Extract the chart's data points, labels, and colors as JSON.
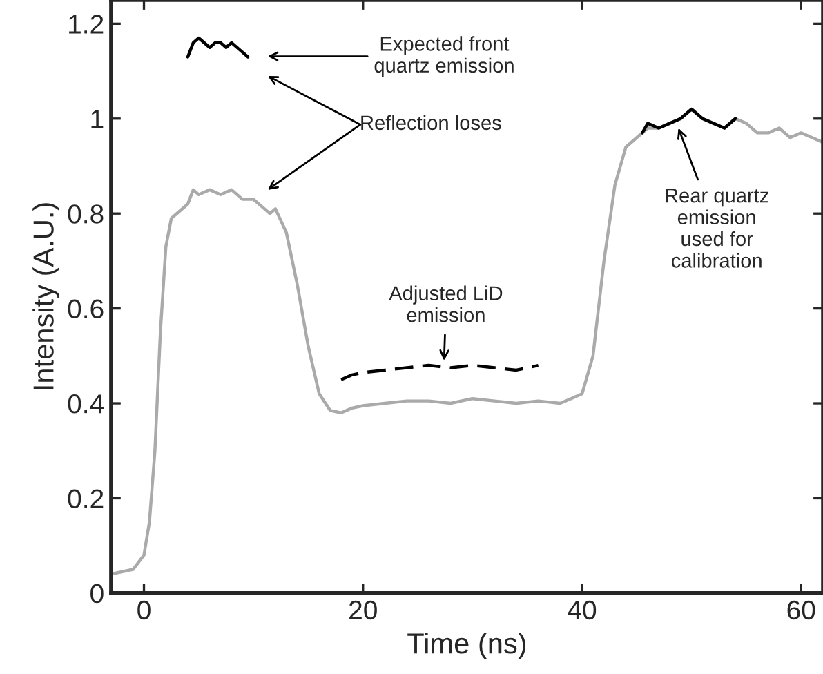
{
  "chart_data": {
    "type": "line",
    "xlabel": "Time (ns)",
    "ylabel": "Intensity (A.U.)",
    "xlim": [
      -3,
      62
    ],
    "ylim": [
      0,
      1.25
    ],
    "xticks": [
      0,
      20,
      40,
      60
    ],
    "yticks": [
      0,
      0.2,
      0.4,
      0.6,
      0.8,
      1,
      1.2
    ],
    "grid": false,
    "legend": false,
    "marker": "none",
    "series": [
      {
        "color": "#aaaaaa",
        "line_style": "solid",
        "x": [
          -3,
          -1,
          0,
          0.5,
          1,
          1.5,
          2,
          2.5,
          3,
          4,
          4.5,
          5,
          6,
          7,
          8,
          9,
          10,
          11,
          11.5,
          12,
          13,
          14,
          15,
          16,
          17,
          18,
          19,
          20,
          22,
          24,
          26,
          28,
          30,
          32,
          34,
          36,
          38,
          39,
          40,
          41,
          42,
          43,
          44,
          45,
          46,
          47,
          48,
          49,
          50,
          51,
          52,
          53,
          54,
          55,
          56,
          57,
          58,
          59,
          60,
          61,
          62
        ],
        "values": [
          0.04,
          0.05,
          0.08,
          0.15,
          0.3,
          0.55,
          0.73,
          0.79,
          0.8,
          0.82,
          0.85,
          0.84,
          0.85,
          0.84,
          0.85,
          0.83,
          0.83,
          0.81,
          0.8,
          0.81,
          0.76,
          0.65,
          0.52,
          0.42,
          0.385,
          0.38,
          0.39,
          0.395,
          0.4,
          0.405,
          0.405,
          0.4,
          0.41,
          0.405,
          0.4,
          0.405,
          0.4,
          0.41,
          0.42,
          0.5,
          0.7,
          0.86,
          0.94,
          0.96,
          0.98,
          0.98,
          0.99,
          1,
          1.02,
          1,
          0.99,
          0.98,
          1,
          0.99,
          0.97,
          0.97,
          0.98,
          0.96,
          0.97,
          0.96,
          0.95
        ]
      },
      {
        "color": "#000000",
        "line_style": "solid",
        "x": [
          4,
          4.5,
          5,
          6,
          6.5,
          7,
          7.5,
          8,
          9,
          9.5
        ],
        "values": [
          1.13,
          1.16,
          1.17,
          1.15,
          1.16,
          1.16,
          1.15,
          1.16,
          1.14,
          1.13
        ]
      },
      {
        "color": "#000000",
        "line_style": "dashed",
        "x": [
          18,
          19,
          20,
          22,
          24,
          26,
          28,
          30,
          32,
          34,
          36
        ],
        "values": [
          0.45,
          0.46,
          0.465,
          0.47,
          0.475,
          0.48,
          0.475,
          0.48,
          0.475,
          0.47,
          0.48
        ]
      },
      {
        "color": "#000000",
        "line_style": "solid",
        "x": [
          45.5,
          46,
          47,
          48,
          49,
          50,
          51,
          52,
          53,
          54
        ],
        "values": [
          0.97,
          0.99,
          0.98,
          0.99,
          1,
          1.02,
          1,
          0.99,
          0.98,
          1
        ]
      }
    ],
    "annotations": [
      "Expected front\nquartz emission",
      "Reflection loses",
      {
        "text": "Adjusted LiD\nemission",
        "x": 27.4,
        "y": 0.49
      },
      {
        "text": "Rear quartz\nemission\nused for\ncalibration",
        "x": 48.8,
        "y": 0.98
      }
    ]
  }
}
